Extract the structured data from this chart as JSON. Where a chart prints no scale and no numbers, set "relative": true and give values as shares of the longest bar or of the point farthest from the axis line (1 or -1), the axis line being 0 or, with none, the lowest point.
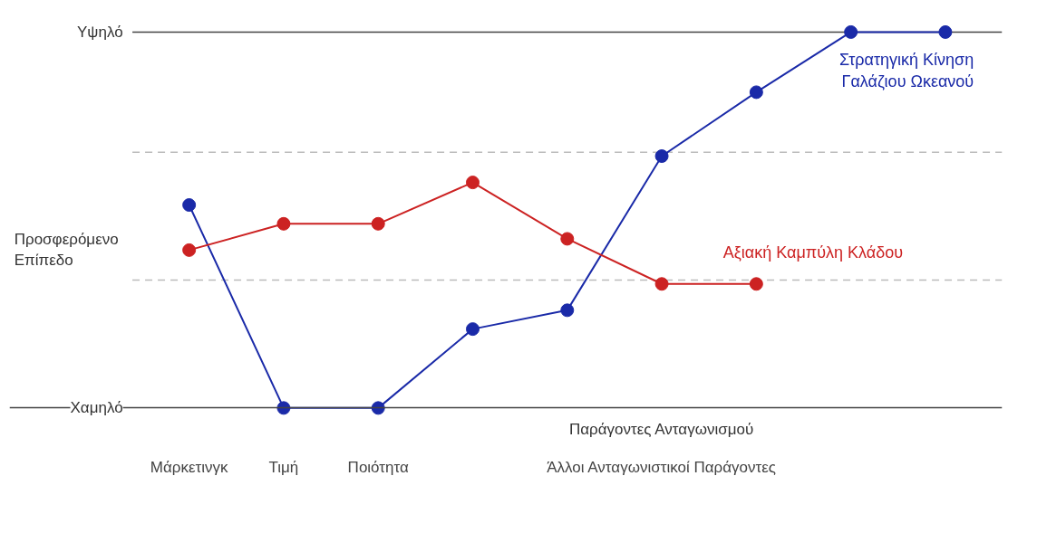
{
  "chart_data": {
    "type": "line",
    "xlabel": "Παράγοντες Ανταγωνισμού",
    "ylabel": "Προσφερόμενο Επίπεδο",
    "relative": true,
    "categories": [
      "Μάρκετινγκ",
      "Τιμή",
      "Ποιότητα",
      null,
      null,
      null,
      null,
      null,
      null
    ],
    "series": [
      {
        "name": "Στρατηγική Κίνηση Γαλάζιου Ωκεανού",
        "color": "#1a2aa8",
        "values": [
          0.54,
          0,
          0,
          0.21,
          0.26,
          0.67,
          0.84,
          1,
          1
        ]
      },
      {
        "name": "Αξιακή Καμπύλη Κλάδου",
        "color": "#cc2222",
        "values": [
          0.42,
          0.49,
          0.49,
          0.6,
          0.45,
          0.33,
          0.33,
          null,
          null
        ]
      }
    ],
    "marker": "circle",
    "line_style": "solid",
    "ref_lines": [
      {
        "axis": "y",
        "value": 0.34,
        "color": "#bbbbbb",
        "line_style": "dashed"
      },
      {
        "axis": "y",
        "value": 0.68,
        "color": "#bbbbbb",
        "line_style": "dashed"
      },
      {
        "axis": "y",
        "value": 1,
        "label": "Υψηλό",
        "color": "#444444",
        "line_style": "solid"
      }
    ],
    "annotations": [
      "Χαμηλό",
      {
        "text": "Άλλοι Ανταγωνιστικοί Παράγοντες"
      }
    ]
  }
}
